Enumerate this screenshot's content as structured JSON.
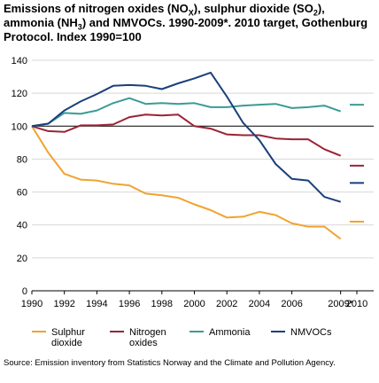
{
  "title": {
    "part1": "Emissions of nitrogen oxides (NO",
    "sub1": "X",
    "part2": "), sulphur dioxide (SO",
    "sub2": "2",
    "part3": "), ammonia (NH",
    "sub3": "3",
    "part4": ") and NMVOCs. 1990-2009*. 2010 target, Gothenburg Protocol. Index 1990=100"
  },
  "source": "Source: Emission inventory from Statistics Norway and the Climate and Pollution Agency.",
  "chart_data": {
    "type": "line",
    "x": [
      1990,
      1991,
      1992,
      1993,
      1994,
      1995,
      1996,
      1997,
      1998,
      1999,
      2000,
      2001,
      2002,
      2003,
      2004,
      2005,
      2006,
      2007,
      2008,
      2009
    ],
    "x_tick_labels": [
      "1990",
      "1992",
      "1994",
      "1996",
      "1998",
      "2000",
      "2002",
      "2004",
      "2006",
      "2009*",
      "2010"
    ],
    "x_tick_years": [
      1990,
      1992,
      1994,
      1996,
      1998,
      2000,
      2002,
      2004,
      2006,
      2009,
      2010
    ],
    "ylim": [
      0,
      140
    ],
    "yticks": [
      0,
      20,
      40,
      60,
      80,
      100,
      120,
      140
    ],
    "reference_line": 100,
    "series": [
      {
        "name": "Sulphur dioxide",
        "color": "#f0a330",
        "values": [
          100,
          84,
          71,
          67.5,
          67,
          65,
          64,
          59,
          58,
          56.5,
          52.5,
          49,
          44.5,
          45,
          48,
          46,
          41,
          39,
          39,
          31.5
        ],
        "target": 42
      },
      {
        "name": "Nitrogen oxides",
        "color": "#9b2335",
        "values": [
          100,
          97,
          96.5,
          100.5,
          100.5,
          101,
          105.5,
          107,
          106.5,
          107,
          100,
          98.5,
          95,
          94.5,
          94.5,
          92.5,
          92,
          92,
          86,
          82
        ],
        "target": 76
      },
      {
        "name": "Ammonia",
        "color": "#3a9c94",
        "values": [
          100,
          101.5,
          108,
          107.5,
          109.5,
          114,
          117,
          113.5,
          114,
          113.5,
          114,
          111.5,
          111.5,
          112.5,
          113,
          113.5,
          111,
          111.5,
          112.5,
          109
        ],
        "target": 113
      },
      {
        "name": "NMVOCs",
        "color": "#1a3f7a",
        "values": [
          100,
          101.5,
          109.5,
          115,
          119.5,
          124.5,
          125,
          124.5,
          122.5,
          126,
          129,
          132.5,
          118,
          102,
          91.5,
          77,
          68,
          67,
          57,
          54
        ],
        "target": 65.5
      }
    ],
    "legend": [
      {
        "label": "Sulphur\ndioxide",
        "color": "#f0a330"
      },
      {
        "label": "Nitrogen\noxides",
        "color": "#9b2335"
      },
      {
        "label": "Ammonia",
        "color": "#3a9c94"
      },
      {
        "label": "NMVOCs",
        "color": "#1a3f7a"
      }
    ],
    "legend_placement": "bottom",
    "grid": "horizontal",
    "colors": {
      "grid": "#d7d7d7",
      "axis": "#000000",
      "reference": "#000000"
    }
  }
}
